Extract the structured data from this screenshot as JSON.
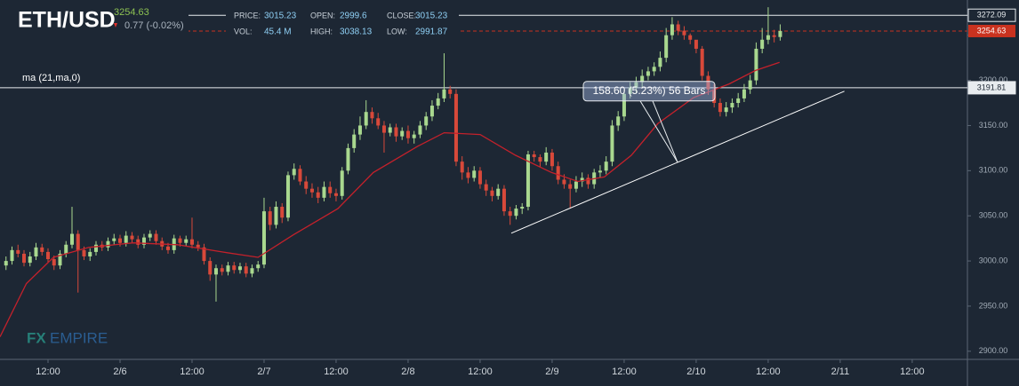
{
  "header": {
    "symbol": "ETH/USD",
    "change": "0.77 (-0.02%)",
    "stats": [
      {
        "label": "PRICE:",
        "value": "3015.23"
      },
      {
        "label": "VOL:",
        "value": "45.4 M"
      },
      {
        "label": "OPEN:",
        "value": "2999.6"
      },
      {
        "label": "HIGH:",
        "value": "3038.13"
      },
      {
        "label": "CLOSE:",
        "value": "3015.23"
      },
      {
        "label": "LOW:",
        "value": "2991.87"
      }
    ],
    "watermark": [
      "FX",
      "EMPIRE"
    ]
  },
  "chart_data": {
    "type": "candlestick",
    "x": [
      5,
      6,
      7,
      8,
      9,
      10,
      11,
      12,
      13,
      14,
      15,
      16,
      17,
      18,
      19,
      20,
      21,
      22,
      23,
      24,
      25,
      26,
      27,
      28,
      29,
      30,
      31,
      32,
      33,
      34,
      35,
      36,
      37,
      38,
      39,
      40,
      41,
      42,
      43,
      44,
      45,
      46,
      47,
      48,
      49,
      50,
      51,
      52,
      53,
      54,
      55,
      56,
      57,
      58,
      59,
      60,
      61,
      62,
      63,
      64,
      65,
      66,
      67,
      68,
      69,
      70,
      71,
      72,
      73,
      74,
      75,
      76,
      77,
      78,
      79,
      80,
      81,
      82,
      83,
      84,
      85,
      86,
      87,
      88,
      89,
      90,
      91,
      92,
      93,
      94,
      95,
      96,
      97,
      98,
      99,
      100,
      101,
      102,
      103,
      104,
      105,
      106,
      107,
      108,
      109,
      110,
      111,
      112,
      113,
      114,
      115,
      116,
      117,
      118,
      119,
      120,
      121,
      122,
      123,
      124,
      125,
      126,
      127,
      128,
      129,
      130,
      131,
      132,
      133,
      134
    ],
    "open": [
      2995,
      3000,
      3012,
      3008,
      2998,
      3005,
      3015,
      3010,
      3002,
      2995,
      3008,
      3018,
      3030,
      3012,
      3005,
      3010,
      3018,
      3015,
      3022,
      3025,
      3020,
      3028,
      3024,
      3018,
      3026,
      3030,
      3022,
      3016,
      3012,
      3025,
      3020,
      3024,
      3018,
      3015,
      3000,
      2985,
      2992,
      2988,
      2995,
      2990,
      2994,
      2986,
      2992,
      2996,
      3055,
      3040,
      3060,
      3048,
      3095,
      3102,
      3088,
      3080,
      3076,
      3070,
      3082,
      3075,
      3072,
      3100,
      3125,
      3140,
      3150,
      3165,
      3158,
      3150,
      3142,
      3148,
      3138,
      3144,
      3136,
      3140,
      3150,
      3160,
      3172,
      3180,
      3190,
      3185,
      3110,
      3098,
      3092,
      3100,
      3085,
      3078,
      3072,
      3080,
      3055,
      3050,
      3058,
      3060,
      3118,
      3115,
      3110,
      3120,
      3105,
      3090,
      3085,
      3080,
      3088,
      3092,
      3085,
      3098,
      3100,
      3110,
      3150,
      3160,
      3185,
      3192,
      3198,
      3205,
      3210,
      3215,
      3225,
      3250,
      3262,
      3255,
      3250,
      3245,
      3235,
      3205,
      3190,
      3175,
      3165,
      3170,
      3175,
      3180,
      3190,
      3200,
      3235,
      3245,
      3250,
      3248
    ],
    "high": [
      3005,
      3016,
      3018,
      3012,
      3010,
      3020,
      3019,
      3014,
      3006,
      3012,
      3022,
      3060,
      3034,
      3016,
      3014,
      3022,
      3022,
      3026,
      3030,
      3029,
      3033,
      3032,
      3028,
      3030,
      3034,
      3034,
      3026,
      3020,
      3029,
      3028,
      3028,
      3048,
      3022,
      3019,
      3004,
      2996,
      2996,
      2999,
      2999,
      2998,
      2998,
      2996,
      3000,
      3070,
      3060,
      3066,
      3064,
      3099,
      3108,
      3106,
      3094,
      3086,
      3082,
      3088,
      3088,
      3080,
      3104,
      3130,
      3146,
      3160,
      3178,
      3170,
      3164,
      3155,
      3152,
      3152,
      3148,
      3150,
      3144,
      3155,
      3165,
      3178,
      3186,
      3230,
      3194,
      3190,
      3116,
      3104,
      3105,
      3104,
      3090,
      3082,
      3085,
      3084,
      3060,
      3062,
      3064,
      3122,
      3122,
      3118,
      3126,
      3124,
      3110,
      3096,
      3090,
      3094,
      3098,
      3096,
      3102,
      3106,
      3116,
      3156,
      3166,
      3190,
      3198,
      3204,
      3212,
      3215,
      3220,
      3232,
      3258,
      3270,
      3266,
      3260,
      3252,
      3242,
      3238,
      3210,
      3196,
      3180,
      3176,
      3180,
      3186,
      3196,
      3206,
      3242,
      3258,
      3281,
      3256,
      3262
    ],
    "low": [
      2990,
      2996,
      3004,
      2994,
      2994,
      3001,
      3006,
      2998,
      2990,
      2991,
      3004,
      3014,
      2965,
      3001,
      3000,
      3006,
      3011,
      3011,
      3018,
      3016,
      3016,
      3020,
      3014,
      3014,
      3022,
      3018,
      3012,
      3008,
      3008,
      3016,
      3016,
      3014,
      3011,
      2996,
      2978,
      2955,
      2984,
      2984,
      2986,
      2986,
      2982,
      2982,
      2988,
      2992,
      3034,
      3036,
      3042,
      3044,
      3090,
      3084,
      3074,
      3070,
      3064,
      3066,
      3070,
      3066,
      3068,
      3096,
      3120,
      3134,
      3146,
      3152,
      3146,
      3120,
      3138,
      3132,
      3134,
      3130,
      3130,
      3136,
      3145,
      3155,
      3168,
      3176,
      3180,
      3105,
      3090,
      3086,
      3088,
      3080,
      3072,
      3066,
      3068,
      3050,
      3040,
      3046,
      3052,
      3056,
      3110,
      3104,
      3106,
      3100,
      3085,
      3080,
      3058,
      3076,
      3082,
      3080,
      3080,
      3092,
      3096,
      3105,
      3144,
      3155,
      3180,
      3186,
      3192,
      3200,
      3205,
      3210,
      3220,
      3245,
      3250,
      3245,
      3240,
      3230,
      3200,
      3184,
      3170,
      3160,
      3160,
      3164,
      3170,
      3176,
      3185,
      3195,
      3230,
      3240,
      3242,
      3244
    ],
    "close": [
      3000,
      3012,
      3008,
      2998,
      3005,
      3015,
      3010,
      3002,
      2995,
      3008,
      3018,
      3030,
      3012,
      3005,
      3010,
      3018,
      3015,
      3022,
      3025,
      3020,
      3028,
      3024,
      3018,
      3026,
      3030,
      3022,
      3016,
      3012,
      3025,
      3020,
      3024,
      3018,
      3015,
      3000,
      2985,
      2992,
      2988,
      2995,
      2990,
      2994,
      2986,
      2992,
      2996,
      3055,
      3040,
      3060,
      3048,
      3095,
      3102,
      3088,
      3080,
      3076,
      3070,
      3082,
      3075,
      3072,
      3100,
      3125,
      3140,
      3150,
      3165,
      3158,
      3150,
      3142,
      3148,
      3138,
      3144,
      3136,
      3140,
      3150,
      3160,
      3172,
      3180,
      3190,
      3185,
      3110,
      3098,
      3092,
      3100,
      3085,
      3078,
      3072,
      3080,
      3055,
      3050,
      3058,
      3060,
      3118,
      3115,
      3110,
      3120,
      3105,
      3090,
      3085,
      3080,
      3088,
      3092,
      3085,
      3098,
      3100,
      3110,
      3150,
      3160,
      3185,
      3192,
      3198,
      3205,
      3210,
      3215,
      3225,
      3250,
      3262,
      3255,
      3250,
      3245,
      3235,
      3205,
      3190,
      3175,
      3165,
      3170,
      3175,
      3180,
      3190,
      3200,
      3235,
      3245,
      3250,
      3248,
      3254.63
    ],
    "up_color": "#a9d88f",
    "down_color": "#d8493a",
    "last_color": "#c9321f",
    "ma": {
      "name": "ma (21,ma,0)",
      "color": "#c4212b",
      "x": [
        4,
        8.4,
        12.9,
        18.8,
        26.2,
        33.6,
        41,
        47,
        52.9,
        60.3,
        66.2,
        73.6,
        78,
        84,
        89.9,
        95.9,
        100.3,
        104.7,
        109.2,
        113.6,
        119.6,
        125.5,
        129.9,
        133.9
      ],
      "values": [
        2916,
        2975,
        3004,
        3015,
        3020,
        3018,
        3010,
        3004,
        3029,
        3058,
        3098,
        3127,
        3142,
        3140,
        3117,
        3098,
        3088,
        3093,
        3117,
        3152,
        3181,
        3196,
        3211,
        3220
      ]
    },
    "trendline": {
      "color": "#ffffff",
      "x": [
        89.2,
        144.7
      ],
      "values": [
        3030.7,
        3188
      ]
    },
    "hlines": [
      3272.09,
      3191.81
    ],
    "annotation": {
      "text": "158.60 (5.23%) 56 Bars",
      "x": 116.9,
      "y": 3109.4
    },
    "xlim": [
      4,
      165.2
    ],
    "ylim": [
      2891,
      3289
    ],
    "xticks": [
      {
        "value": 12,
        "label": "12:00"
      },
      {
        "value": 24,
        "label": "2/6"
      },
      {
        "value": 36,
        "label": "12:00"
      },
      {
        "value": 48,
        "label": "2/7"
      },
      {
        "value": 60,
        "label": "12:00"
      },
      {
        "value": 72,
        "label": "2/8"
      },
      {
        "value": 84,
        "label": "12:00"
      },
      {
        "value": 96,
        "label": "2/9"
      },
      {
        "value": 108,
        "label": "12:00"
      },
      {
        "value": 120,
        "label": "2/10"
      },
      {
        "value": 132,
        "label": "12:00"
      },
      {
        "value": 144,
        "label": "2/11"
      },
      {
        "value": 156,
        "label": "12:00"
      }
    ],
    "yticks": [
      {
        "value": 2900,
        "label": "2900.00"
      },
      {
        "value": 2950,
        "label": "2950.00"
      },
      {
        "value": 3000,
        "label": "3000.00"
      },
      {
        "value": 3050,
        "label": "3050.00"
      },
      {
        "value": 3100,
        "label": "3100.00"
      },
      {
        "value": 3150,
        "label": "3150.00"
      },
      {
        "value": 3200,
        "label": "3200.00"
      },
      {
        "value": 3250,
        "label": "3250.00"
      }
    ]
  }
}
